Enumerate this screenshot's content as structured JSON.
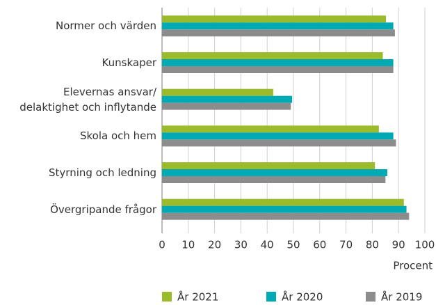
{
  "chart_data": {
    "type": "bar",
    "orientation": "horizontal",
    "categories": [
      "Normer och värden",
      "Kunskaper",
      "Elevernas ansvar/\ndelaktighet och inflytande",
      "Skola och hem",
      "Styrning och ledning",
      "Övergripande frågor"
    ],
    "series": [
      {
        "name": "År 2021",
        "color": "#9bbb2b",
        "values": [
          85.2,
          84,
          42.3,
          82.5,
          81,
          92
        ]
      },
      {
        "name": "År 2020",
        "color": "#00aab5",
        "values": [
          88,
          88,
          49.5,
          88,
          85.7,
          93
        ]
      },
      {
        "name": "År 2019",
        "color": "#8c8c8c",
        "values": [
          88.6,
          88,
          49,
          89,
          85,
          94
        ]
      }
    ],
    "xlabel": "Procent",
    "xlim": [
      0,
      100
    ],
    "xticks": [
      0,
      10,
      20,
      30,
      40,
      50,
      60,
      70,
      80,
      90,
      100
    ],
    "grid": true
  }
}
